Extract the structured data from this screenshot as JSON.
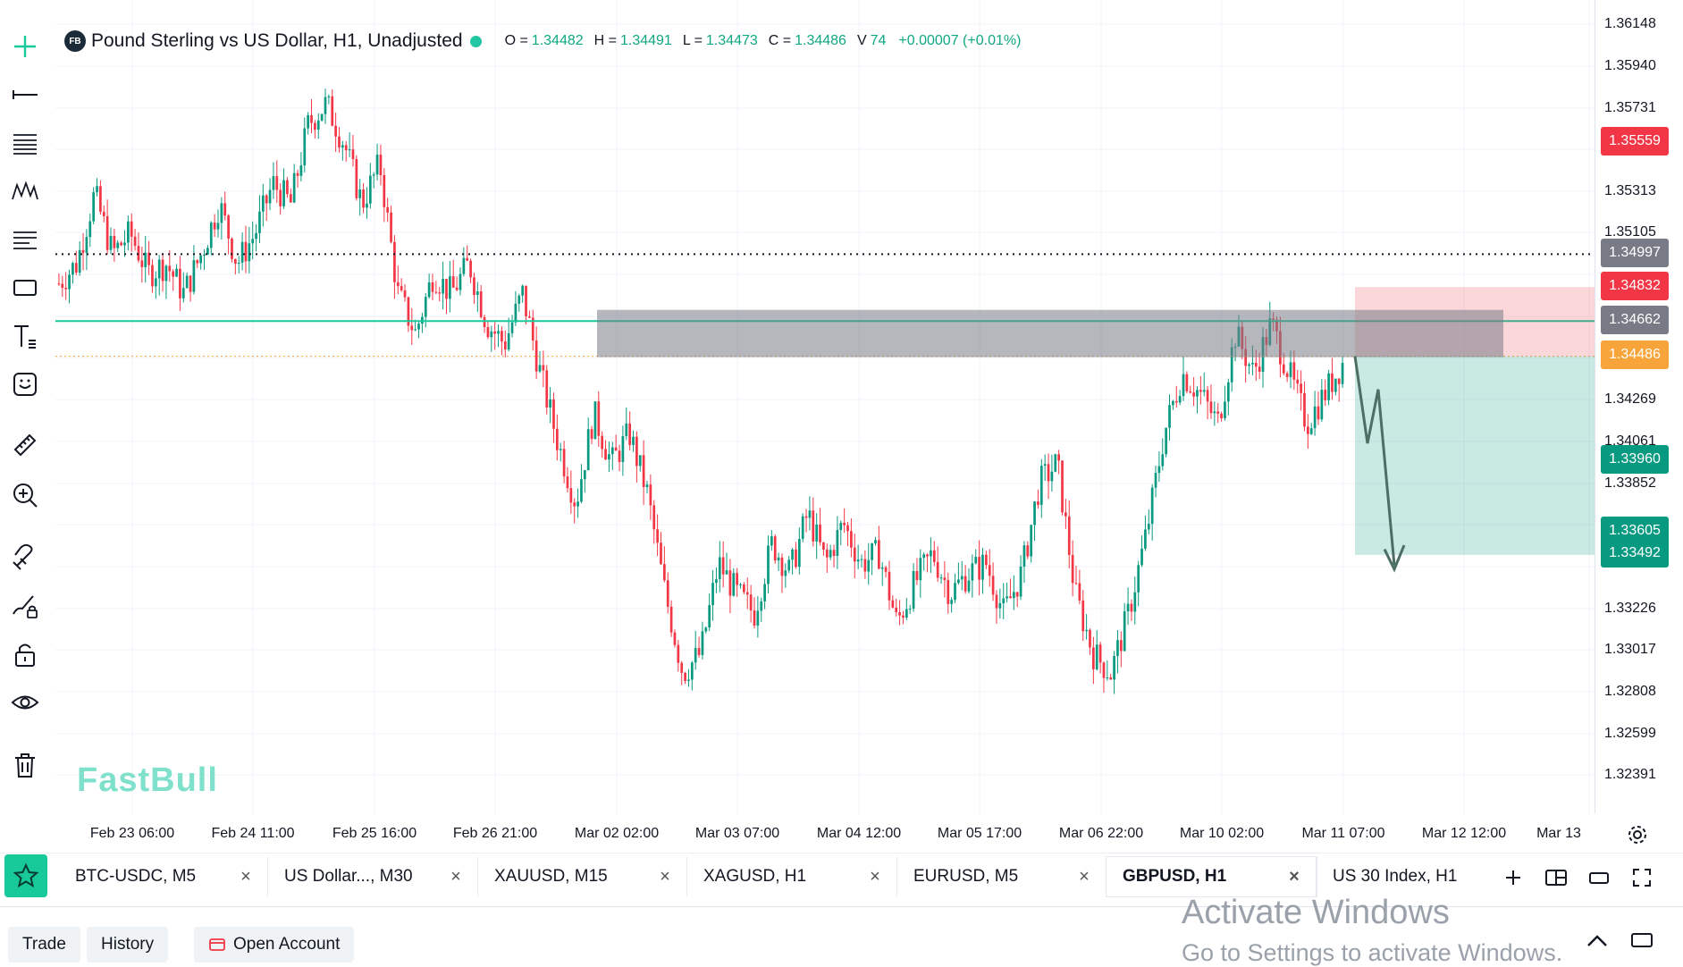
{
  "legend": {
    "badge": "FB",
    "title": "Pound Sterling vs US Dollar, H1, Unadjusted",
    "o_label": "O =",
    "o": "1.34482",
    "h_label": "H =",
    "h": "1.34491",
    "l_label": "L =",
    "l": "1.34473",
    "c_label": "C =",
    "c": "1.34486",
    "v_label": "V",
    "v": "74",
    "change": "+0.00007 (+0.01%)"
  },
  "price_scale": {
    "ticks": [
      "1.36148",
      "1.35940",
      "1.35731",
      "1.35313",
      "1.35105",
      "1.34269",
      "1.34061",
      "1.33852",
      "1.33226",
      "1.33017",
      "1.32808",
      "1.32599",
      "1.32391"
    ],
    "badges": [
      {
        "value": "1.35559",
        "color": "#f23645"
      },
      {
        "value": "1.34997",
        "color": "#787b86"
      },
      {
        "value": "1.34832",
        "color": "#f23645"
      },
      {
        "value": "1.34662",
        "color": "#787b86"
      },
      {
        "value": "1.34486",
        "color": "#f7a53b"
      },
      {
        "value": "1.33960",
        "color": "#089981"
      },
      {
        "value": "1.33605",
        "color": "#089981"
      },
      {
        "value": "1.33492",
        "color": "#089981"
      }
    ]
  },
  "time_axis": [
    "Feb 23 06:00",
    "Feb 24 11:00",
    "Feb 25 16:00",
    "Feb 26 21:00",
    "Mar 02 02:00",
    "Mar 03 07:00",
    "Mar 04 12:00",
    "Mar 05 17:00",
    "Mar 06 22:00",
    "Mar 10 02:00",
    "Mar 11 07:00",
    "Mar 12 12:00",
    "Mar 13"
  ],
  "chart_data": {
    "type": "candlestick",
    "symbol": "GBPUSD",
    "timeframe": "H1",
    "price_range": [
      1.3225,
      1.362
    ],
    "colors": {
      "up": "#089981",
      "down": "#f23645"
    },
    "zigzag": [
      1.3485,
      1.3495,
      1.353,
      1.35,
      1.351,
      1.349,
      1.3495,
      1.348,
      1.35,
      1.3525,
      1.3495,
      1.351,
      1.3535,
      1.3525,
      1.3565,
      1.3575,
      1.3555,
      1.3525,
      1.3545,
      1.348,
      1.346,
      1.349,
      1.348,
      1.3495,
      1.3465,
      1.3455,
      1.348,
      1.344,
      1.3405,
      1.3375,
      1.342,
      1.3395,
      1.341,
      1.338,
      1.333,
      1.329,
      1.33,
      1.3345,
      1.333,
      1.332,
      1.3355,
      1.334,
      1.337,
      1.3345,
      1.3365,
      1.3345,
      1.335,
      1.3315,
      1.3335,
      1.335,
      1.333,
      1.334,
      1.3345,
      1.332,
      1.334,
      1.3385,
      1.3395,
      1.333,
      1.33,
      1.329,
      1.332,
      1.336,
      1.341,
      1.344,
      1.343,
      1.3415,
      1.346,
      1.344,
      1.3465,
      1.344,
      1.3415,
      1.343,
      1.3445
    ],
    "levels": {
      "dotted": 1.34997,
      "green_line": 1.34662,
      "current": 1.34486
    },
    "zone_rect": {
      "x_start": "Mar 02 02:00",
      "x_end": "Mar 12 12:00",
      "top": 1.347,
      "bottom": 1.3458
    },
    "short_position": {
      "entry": 1.34486,
      "stop": 1.34832,
      "target": 1.33492
    }
  },
  "watermark": "FastBull",
  "tabs": [
    {
      "label": "BTC-USDC, M5",
      "active": false
    },
    {
      "label": "US Dollar..., M30",
      "active": false
    },
    {
      "label": "XAUUSD, M15",
      "active": false
    },
    {
      "label": "XAGUSD, H1",
      "active": false
    },
    {
      "label": "EURUSD, M5",
      "active": false
    },
    {
      "label": "GBPUSD, H1",
      "active": true
    },
    {
      "label": "US 30 Index, H1",
      "active": false
    }
  ],
  "bottom": {
    "trade": "Trade",
    "history": "History",
    "open_account": "Open Account"
  },
  "activate": {
    "line1": "Activate Windows",
    "line2": "Go to Settings to activate Windows."
  }
}
